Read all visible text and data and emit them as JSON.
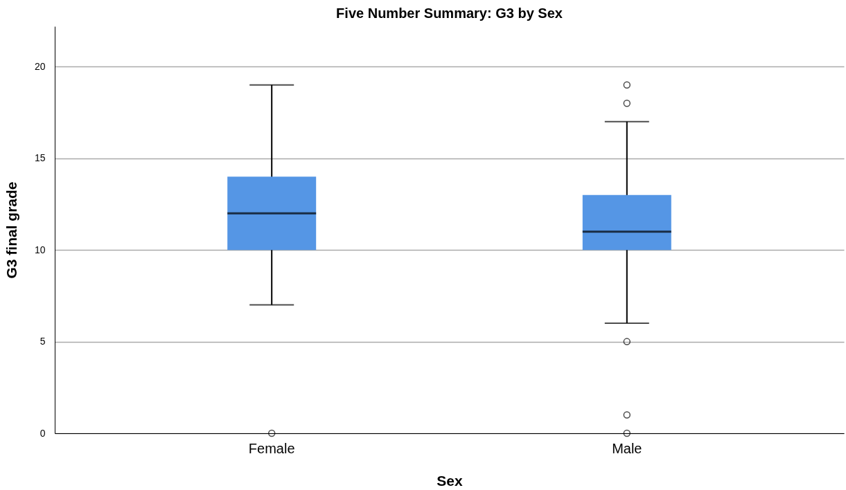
{
  "chart_data": {
    "type": "box",
    "title": "Five Number Summary: G3 by Sex",
    "xlabel": "Sex",
    "ylabel": "G3 final grade",
    "categories": [
      "Female",
      "Male"
    ],
    "series": [
      {
        "color": "#5596e5",
        "boxes": [
          {
            "low": 7,
            "q1": 10,
            "median": 12,
            "q3": 14,
            "high": 19,
            "outliers": [
              0
            ]
          },
          {
            "low": 6,
            "q1": 10,
            "median": 11,
            "q3": 13,
            "high": 17,
            "outliers": [
              19,
              18,
              5,
              1,
              0
            ]
          }
        ]
      }
    ],
    "ylim": [
      0,
      22.2
    ],
    "yticks": [
      0,
      5,
      10,
      15,
      20
    ],
    "grid": "y"
  }
}
